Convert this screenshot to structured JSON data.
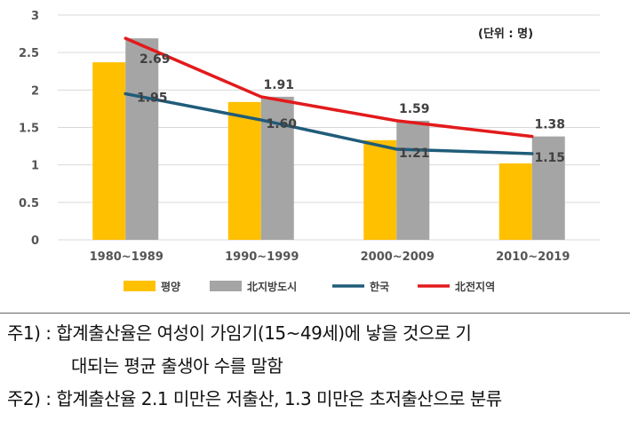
{
  "chart_data": {
    "type": "bar",
    "unit_label": "(단위 : 명)",
    "categories": [
      "1980~1989",
      "1990~1999",
      "2000~2009",
      "2010~2019"
    ],
    "ylim": [
      0,
      3
    ],
    "yticks": [
      "0",
      "0.5",
      "1",
      "1.5",
      "2",
      "2.5",
      "3"
    ],
    "bar_series": [
      {
        "name": "평양",
        "color": "#FFC000",
        "values": [
          2.37,
          1.84,
          1.33,
          1.02
        ]
      },
      {
        "name": "北지방도시",
        "color": "#A5A5A5",
        "values": [
          2.69,
          1.91,
          1.59,
          1.38
        ]
      }
    ],
    "line_series": [
      {
        "name": "한국",
        "color": "#1F5C7A",
        "values": [
          1.95,
          1.6,
          1.21,
          1.15
        ]
      },
      {
        "name": "北전지역",
        "color": "#E31A1C",
        "values": [
          2.69,
          1.91,
          1.59,
          1.38
        ]
      }
    ],
    "data_labels": [
      {
        "text": "2.69",
        "category": 0
      },
      {
        "text": "1.95",
        "category": 0
      },
      {
        "text": "1.91",
        "category": 1
      },
      {
        "text": "1.60",
        "category": 1
      },
      {
        "text": "1.59",
        "category": 2
      },
      {
        "text": "1.21",
        "category": 2
      },
      {
        "text": "1.38",
        "category": 3
      },
      {
        "text": "1.15",
        "category": 3
      }
    ],
    "legend": [
      "평양",
      "北지방도시",
      "한국",
      "北전지역"
    ],
    "legend_position": "bottom",
    "grid": true
  },
  "notes": [
    {
      "label": "주1) : ",
      "text": "합계출산율은 여성이 가임기(15~49세)에 낳을 것으로 기"
    },
    {
      "label": "",
      "text": "대되는 평균 출생아 수를 말함"
    },
    {
      "label": "주2) : ",
      "text": "합계출산율 2.1 미만은 저출산, 1.3 미만은 초저출산으로 분류"
    }
  ]
}
